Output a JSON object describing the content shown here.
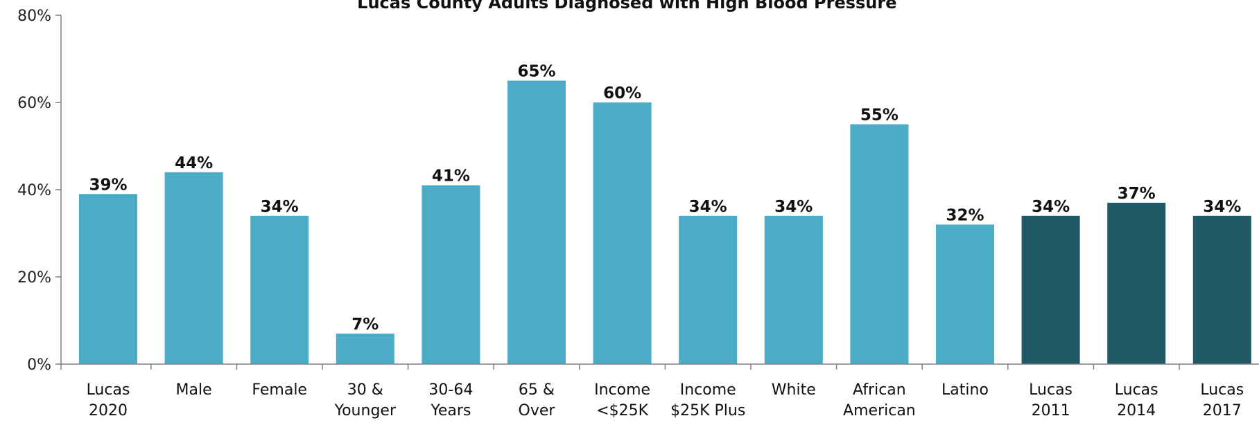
{
  "chart_data": {
    "type": "bar",
    "title": "Lucas County Adults Diagnosed with High Blood Pressure",
    "title_marker": "*",
    "categories": [
      [
        "Lucas",
        "2020"
      ],
      [
        "Male"
      ],
      [
        "Female"
      ],
      [
        "30 &",
        "Younger"
      ],
      [
        "30-64",
        "Years"
      ],
      [
        "65 &",
        "Over"
      ],
      [
        "Income",
        "<$25K"
      ],
      [
        "Income",
        "$25K Plus"
      ],
      [
        "White"
      ],
      [
        "African",
        "American"
      ],
      [
        "Latino"
      ],
      [
        "Lucas",
        "2011"
      ],
      [
        "Lucas",
        "2014"
      ],
      [
        "Lucas",
        "2017"
      ]
    ],
    "values": [
      39,
      44,
      34,
      7,
      41,
      65,
      60,
      34,
      34,
      55,
      32,
      34,
      37,
      34
    ],
    "data_labels": [
      "39%",
      "44%",
      "34%",
      "7%",
      "41%",
      "65%",
      "60%",
      "34%",
      "34%",
      "55%",
      "32%",
      "34%",
      "37%",
      "34%"
    ],
    "bar_colors": [
      "#4BACC6",
      "#4BACC6",
      "#4BACC6",
      "#4BACC6",
      "#4BACC6",
      "#4BACC6",
      "#4BACC6",
      "#4BACC6",
      "#4BACC6",
      "#4BACC6",
      "#4BACC6",
      "#215967",
      "#215967",
      "#215967"
    ],
    "ylim": [
      0,
      80
    ],
    "yticks": [
      0,
      20,
      40,
      60,
      80
    ],
    "ytick_labels": [
      "0%",
      "20%",
      "40%",
      "60%",
      "80%"
    ],
    "xlabel": "",
    "ylabel": "",
    "grid": false,
    "legend": "none"
  }
}
